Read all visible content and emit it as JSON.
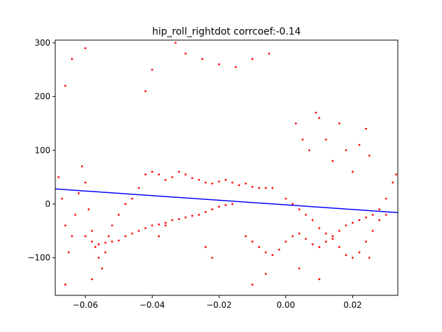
{
  "chart_data": {
    "type": "scatter",
    "title": "hip_roll_rightdot corrcoef:-0.14",
    "xlabel": "",
    "ylabel": "",
    "xlim": [
      -0.069,
      0.0335
    ],
    "ylim": [
      -170,
      305
    ],
    "xticks": [
      -0.06,
      -0.04,
      -0.02,
      0.0,
      0.02
    ],
    "xtick_labels": [
      "−0.06",
      "−0.04",
      "−0.02",
      "0.00",
      "0.02"
    ],
    "yticks": [
      -100,
      0,
      100,
      200,
      300
    ],
    "ytick_labels": [
      "−100",
      "0",
      "100",
      "200",
      "300"
    ],
    "grid": false,
    "scatter_color": "#ff0000",
    "fit_color": "#0000ff",
    "fit_line": {
      "x": [
        -0.069,
        0.0335
      ],
      "y": [
        28,
        -16
      ]
    },
    "series": [
      {
        "role": "scatter",
        "points": [
          [
            -0.068,
            50
          ],
          [
            -0.067,
            10
          ],
          [
            -0.066,
            -40
          ],
          [
            -0.065,
            -90
          ],
          [
            -0.064,
            -60
          ],
          [
            -0.063,
            -20
          ],
          [
            -0.062,
            20
          ],
          [
            -0.061,
            70
          ],
          [
            -0.06,
            40
          ],
          [
            -0.059,
            -10
          ],
          [
            -0.058,
            -50
          ],
          [
            -0.057,
            -80
          ],
          [
            -0.056,
            -100
          ],
          [
            -0.055,
            -120
          ],
          [
            -0.054,
            -90
          ],
          [
            -0.053,
            -60
          ],
          [
            -0.052,
            -40
          ],
          [
            -0.05,
            -20
          ],
          [
            -0.048,
            0
          ],
          [
            -0.046,
            10
          ],
          [
            -0.044,
            30
          ],
          [
            -0.042,
            55
          ],
          [
            -0.04,
            60
          ],
          [
            -0.038,
            55
          ],
          [
            -0.036,
            45
          ],
          [
            -0.034,
            50
          ],
          [
            -0.032,
            60
          ],
          [
            -0.03,
            55
          ],
          [
            -0.028,
            48
          ],
          [
            -0.026,
            45
          ],
          [
            -0.024,
            40
          ],
          [
            -0.022,
            38
          ],
          [
            -0.02,
            42
          ],
          [
            -0.018,
            45
          ],
          [
            -0.016,
            40
          ],
          [
            -0.014,
            35
          ],
          [
            -0.012,
            38
          ],
          [
            -0.01,
            32
          ],
          [
            -0.008,
            30
          ],
          [
            -0.006,
            30
          ],
          [
            -0.004,
            30
          ],
          [
            -0.06,
            -60
          ],
          [
            -0.058,
            -70
          ],
          [
            -0.056,
            -75
          ],
          [
            -0.054,
            -72
          ],
          [
            -0.052,
            -70
          ],
          [
            -0.05,
            -68
          ],
          [
            -0.048,
            -60
          ],
          [
            -0.046,
            -55
          ],
          [
            -0.044,
            -50
          ],
          [
            -0.042,
            -45
          ],
          [
            -0.04,
            -40
          ],
          [
            -0.038,
            -38
          ],
          [
            -0.036,
            -35
          ],
          [
            -0.034,
            -30
          ],
          [
            -0.032,
            -28
          ],
          [
            -0.03,
            -25
          ],
          [
            -0.028,
            -22
          ],
          [
            -0.026,
            -20
          ],
          [
            -0.024,
            -15
          ],
          [
            -0.022,
            -10
          ],
          [
            -0.02,
            -5
          ],
          [
            -0.018,
            -2
          ],
          [
            -0.016,
            0
          ],
          [
            -0.012,
            -60
          ],
          [
            -0.01,
            -70
          ],
          [
            -0.008,
            -80
          ],
          [
            -0.006,
            -90
          ],
          [
            -0.004,
            -95
          ],
          [
            -0.002,
            -85
          ],
          [
            0.0,
            -70
          ],
          [
            0.002,
            -60
          ],
          [
            0.004,
            -55
          ],
          [
            0.006,
            -65
          ],
          [
            0.008,
            -75
          ],
          [
            0.01,
            -80
          ],
          [
            0.012,
            -70
          ],
          [
            0.014,
            -60
          ],
          [
            0.016,
            -50
          ],
          [
            0.018,
            -40
          ],
          [
            0.02,
            -35
          ],
          [
            0.022,
            -30
          ],
          [
            0.024,
            -25
          ],
          [
            0.026,
            -20
          ],
          [
            0.028,
            -10
          ],
          [
            0.03,
            10
          ],
          [
            0.032,
            40
          ],
          [
            0.033,
            55
          ],
          [
            0.0,
            10
          ],
          [
            0.002,
            0
          ],
          [
            0.004,
            -10
          ],
          [
            0.006,
            -20
          ],
          [
            0.008,
            -30
          ],
          [
            0.01,
            -45
          ],
          [
            0.012,
            -55
          ],
          [
            0.014,
            -65
          ],
          [
            0.016,
            -80
          ],
          [
            0.018,
            -95
          ],
          [
            0.02,
            -100
          ],
          [
            0.022,
            -90
          ],
          [
            0.024,
            -70
          ],
          [
            0.026,
            -50
          ],
          [
            0.028,
            -30
          ],
          [
            0.03,
            -20
          ],
          [
            0.01,
            160
          ],
          [
            0.012,
            120
          ],
          [
            0.014,
            80
          ],
          [
            0.016,
            150
          ],
          [
            0.018,
            100
          ],
          [
            0.02,
            60
          ],
          [
            0.022,
            110
          ],
          [
            0.024,
            140
          ],
          [
            0.025,
            90
          ],
          [
            0.003,
            150
          ],
          [
            0.005,
            120
          ],
          [
            0.007,
            100
          ],
          [
            0.009,
            170
          ],
          [
            -0.03,
            280
          ],
          [
            -0.025,
            270
          ],
          [
            -0.02,
            260
          ],
          [
            -0.015,
            255
          ],
          [
            -0.01,
            270
          ],
          [
            -0.005,
            280
          ],
          [
            -0.04,
            250
          ],
          [
            -0.042,
            210
          ],
          [
            -0.06,
            290
          ],
          [
            -0.064,
            270
          ],
          [
            -0.066,
            220
          ],
          [
            -0.033,
            300
          ],
          [
            -0.066,
            -150
          ],
          [
            -0.058,
            -140
          ],
          [
            -0.01,
            -150
          ],
          [
            0.01,
            -140
          ],
          [
            0.025,
            -100
          ],
          [
            -0.038,
            -60
          ],
          [
            -0.036,
            -40
          ],
          [
            -0.024,
            -80
          ],
          [
            -0.022,
            -100
          ],
          [
            0.004,
            -120
          ],
          [
            -0.006,
            -130
          ]
        ]
      }
    ]
  }
}
